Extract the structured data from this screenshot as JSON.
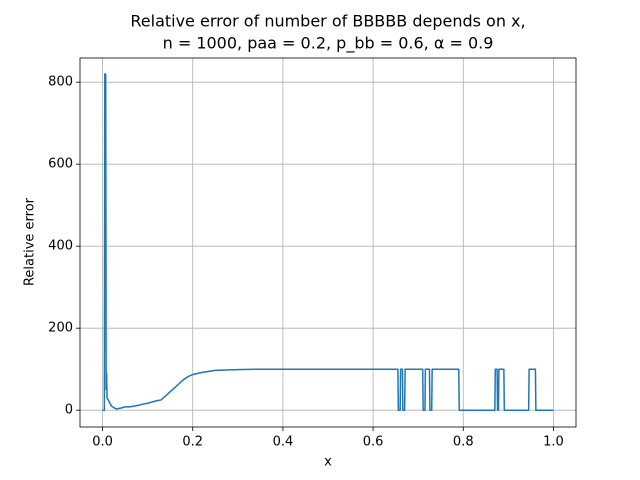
{
  "chart_data": {
    "type": "line",
    "title": [
      "Relative error of number of BBBBB depends on x,",
      "n = 1000, paa = 0.2, p_bb = 0.6, α = 0.9"
    ],
    "x_label": "x",
    "y_label": "Relative error",
    "x": [
      0,
      0.004,
      0.005,
      0.007,
      0.008,
      0.009,
      0.01,
      0.015,
      0.02,
      0.03,
      0.04,
      0.05,
      0.06,
      0.07,
      0.08,
      0.09,
      0.1,
      0.11,
      0.12,
      0.13,
      0.14,
      0.15,
      0.16,
      0.17,
      0.18,
      0.19,
      0.2,
      0.22,
      0.25,
      0.3,
      0.35,
      0.655,
      0.656,
      0.66,
      0.661,
      0.665,
      0.666,
      0.67,
      0.671,
      0.71,
      0.711,
      0.715,
      0.716,
      0.725,
      0.726,
      0.73,
      0.731,
      0.79,
      0.791,
      0.87,
      0.871,
      0.875,
      0.876,
      0.878,
      0.879,
      0.89,
      0.891,
      0.945,
      0.946,
      0.96,
      0.961,
      1.0
    ],
    "series": [
      {
        "name": "Relative error",
        "color": "#1f77b4",
        "values": [
          0,
          0,
          820,
          820,
          50,
          90,
          30,
          20,
          10,
          3,
          5,
          8,
          8,
          10,
          12,
          15,
          17,
          20,
          23,
          25,
          35,
          45,
          55,
          65,
          75,
          82,
          87,
          92,
          97,
          99,
          100,
          100,
          0,
          0,
          100,
          100,
          0,
          0,
          100,
          100,
          0,
          0,
          100,
          100,
          0,
          0,
          100,
          100,
          0,
          0,
          100,
          100,
          0,
          0,
          100,
          100,
          0,
          0,
          100,
          100,
          0,
          0
        ]
      }
    ],
    "xlim": [
      -0.05,
      1.05
    ],
    "ylim": [
      -41,
      859
    ],
    "xticks": [
      {
        "value": 0,
        "label": "0.0"
      },
      0.2,
      0.4,
      0.6,
      0.8,
      {
        "value": 1,
        "label": "1.0"
      }
    ],
    "yticks": [
      0,
      200,
      400,
      600,
      800
    ],
    "grid": true
  }
}
